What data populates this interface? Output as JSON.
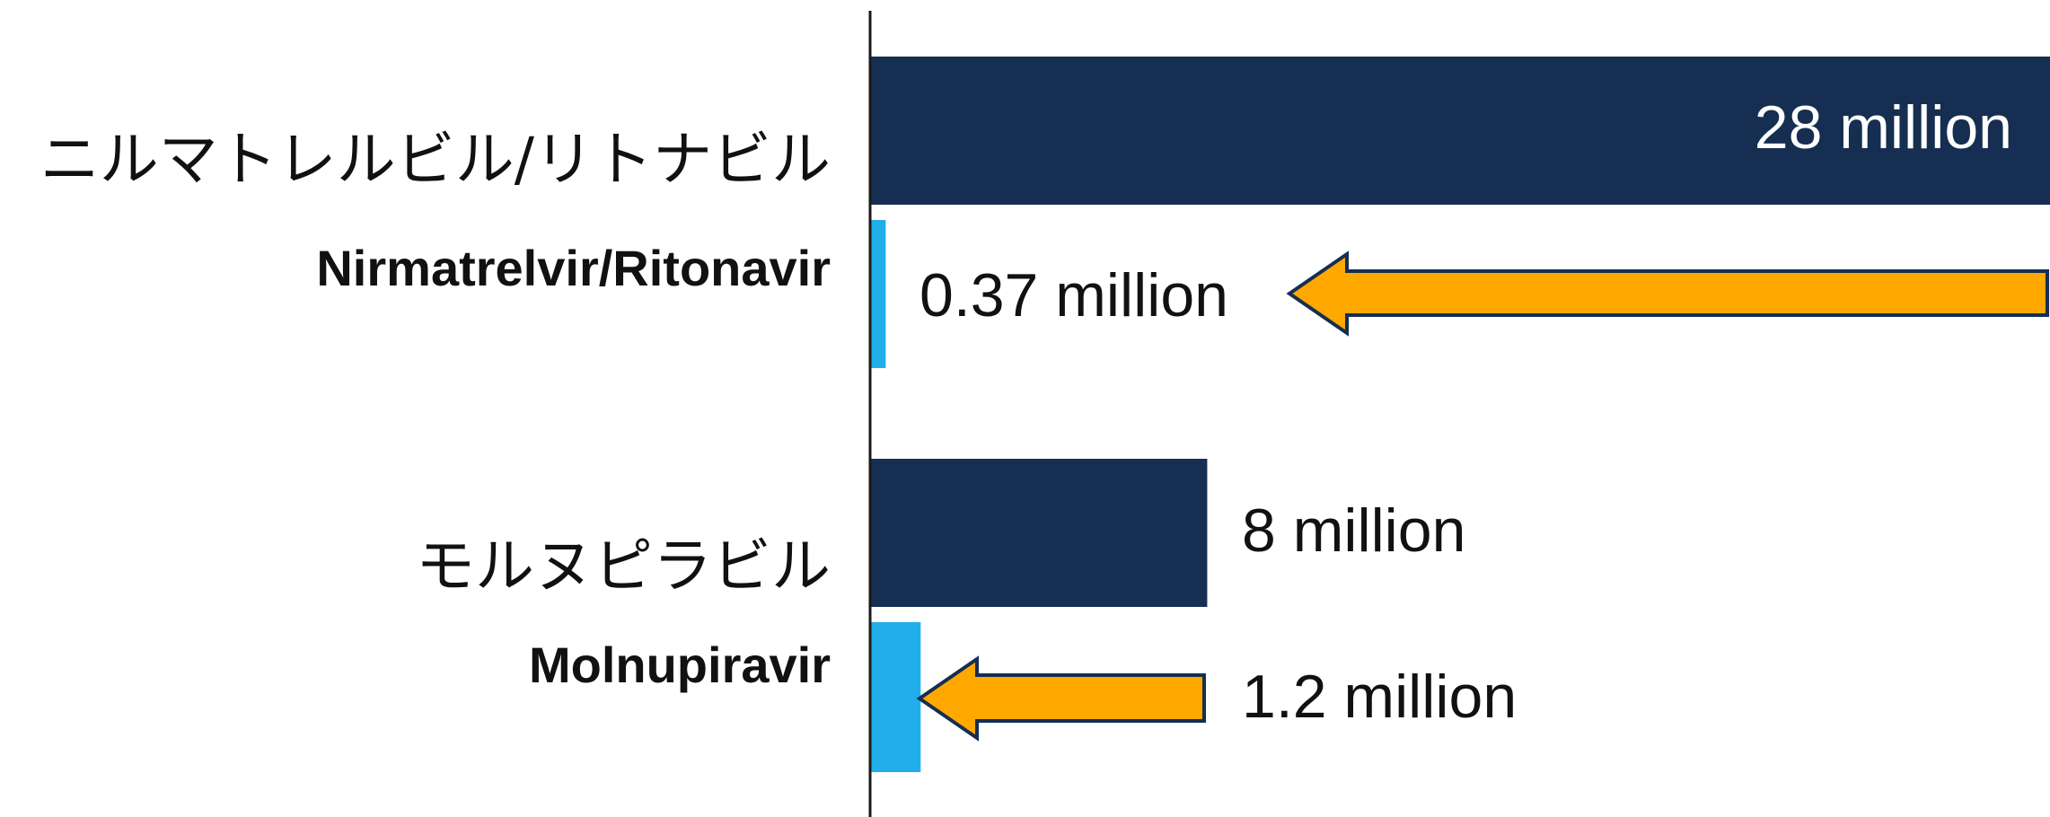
{
  "chart_data": {
    "type": "bar",
    "orientation": "horizontal",
    "categories": [
      {
        "label_jp": "ニルマトレルビル/リトナビル",
        "label_en": "Nirmatrelvir/Ritonavir"
      },
      {
        "label_jp": "モルヌピラビル",
        "label_en": "Molnupiravir"
      }
    ],
    "series": [
      {
        "color": "#152e52",
        "values": [
          28,
          8
        ],
        "labels": [
          "28 million",
          "8 million"
        ]
      },
      {
        "color": "#22aeea",
        "values": [
          0.37,
          1.2
        ],
        "labels": [
          "0.37 million",
          "1.2 million"
        ]
      }
    ],
    "unit": "million",
    "xlim": [
      0,
      28
    ],
    "grid": false,
    "legend": "none",
    "annotations": [
      {
        "type": "arrow",
        "color": "#ffa800",
        "points_to": "0.37 million"
      },
      {
        "type": "arrow",
        "color": "#ffa800",
        "points_to": "1.2 million"
      }
    ]
  }
}
